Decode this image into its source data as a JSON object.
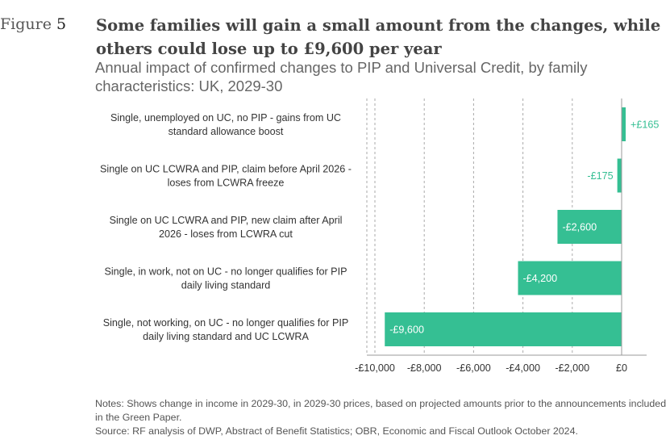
{
  "figure": {
    "label_word": "Figure",
    "label_number": "5",
    "title": "Some families will gain a small amount from the changes, while others could lose up to £9,600 per year",
    "subtitle": "Annual impact of confirmed changes to PIP and Universal Credit, by family characteristics: UK, 2029-30",
    "notes": "Notes: Shows change in income in 2029-30, in 2029-30 prices, based on projected amounts prior to the announcements included in the Green Paper.",
    "source": "Source: RF analysis of DWP, Abstract of Benefit Statistics; OBR, Economic and Fiscal Outlook October 2024."
  },
  "colors": {
    "bar": "#35BF93",
    "bar_label_inside": "#ffffff",
    "bar_label_outside": "#35BF93",
    "grid": "#aaaaaa",
    "axis": "#999999"
  },
  "chart_data": {
    "type": "bar",
    "orientation": "horizontal",
    "categories": [
      [
        "Single, unemployed on UC, no PIP - gains from UC",
        "standard allowance boost"
      ],
      [
        "Single on UC LCWRA and PIP, claim before April 2026 -",
        "loses from LCWRA freeze"
      ],
      [
        "Single on UC LCWRA and PIP, new claim after April",
        "2026 - loses from LCWRA cut"
      ],
      [
        "Single, in work, not on UC - no longer qualifies for PIP",
        "daily living standard"
      ],
      [
        "Single, not working, on UC - no longer qualifies for PIP",
        "daily living standard and UC LCWRA"
      ]
    ],
    "values": [
      165,
      -175,
      -2600,
      -4200,
      -9600
    ],
    "data_labels": [
      "+£165",
      "-£175",
      "-£2,600",
      "-£4,200",
      "-£9,600"
    ],
    "xlim": [
      -10000,
      0
    ],
    "x_ticks": [
      -10000,
      -8000,
      -6000,
      -4000,
      -2000,
      0
    ],
    "x_tick_labels": [
      "-£10,000",
      "-£8,000",
      "-£6,000",
      "-£4,000",
      "-£2,000",
      "£0"
    ],
    "grid": "vertical dashed",
    "xlabel": "",
    "ylabel": "",
    "title": "Annual impact of confirmed changes to PIP and Universal Credit, by family characteristics: UK, 2029-30"
  }
}
